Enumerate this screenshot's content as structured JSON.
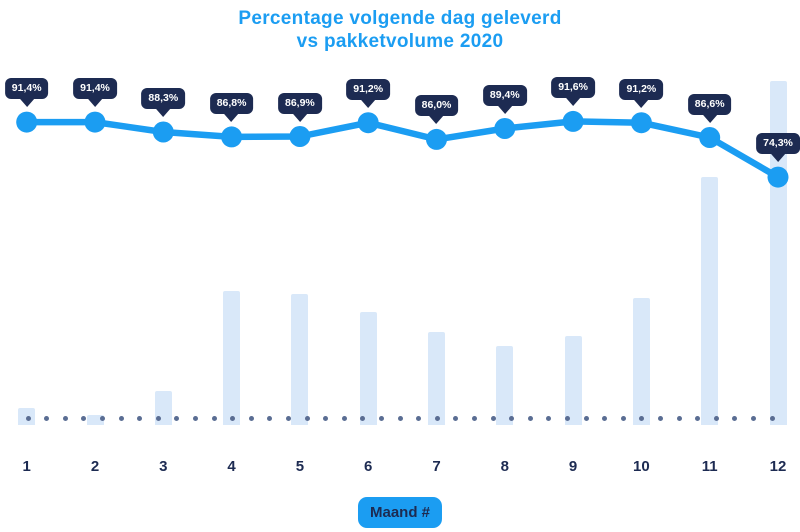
{
  "title": {
    "line1": "Percentage volgende dag geleverd",
    "line2": "vs pakketvolume 2020"
  },
  "x_axis": {
    "badge_label": "Maand #",
    "ticks": [
      "1",
      "2",
      "3",
      "4",
      "5",
      "6",
      "7",
      "8",
      "9",
      "10",
      "11",
      "12"
    ]
  },
  "chart_data": {
    "type": "combo",
    "title": "Percentage volgende dag geleverd vs pakketvolume 2020",
    "categories": [
      "1",
      "2",
      "3",
      "4",
      "5",
      "6",
      "7",
      "8",
      "9",
      "10",
      "11",
      "12"
    ],
    "xlabel": "Maand #",
    "legend": "none",
    "grid": "off",
    "baseline_style": "dotted",
    "series": [
      {
        "name": "Percentage volgende dag geleverd",
        "type": "line",
        "unit": "%",
        "values": [
          91.4,
          91.4,
          88.3,
          86.8,
          86.9,
          91.2,
          86.0,
          89.4,
          91.6,
          91.2,
          86.6,
          74.3
        ],
        "point_labels": [
          "91,4%",
          "91,4%",
          "88,3%",
          "86,8%",
          "86,9%",
          "91,2%",
          "86,0%",
          "89,4%",
          "91,6%",
          "91,2%",
          "86,6%",
          "74,3%"
        ]
      },
      {
        "name": "Pakketvolume 2020",
        "type": "bar",
        "unit": "relative volume, estimated from bar heights (max month = 100, no value axis shown)",
        "values": [
          5,
          3,
          10,
          39,
          38,
          33,
          27,
          23,
          26,
          37,
          72,
          100
        ]
      }
    ],
    "colors": {
      "line": "#1b9df2",
      "marker": "#1b9df2",
      "bar_fill": "#d9e8f9",
      "tooltip_bg": "#1d2b52",
      "tooltip_text": "#ffffff",
      "tick_text": "#1d2b52",
      "baseline_dots": "#5a6d93",
      "title_text": "#1b9df2",
      "badge_bg": "#1b9df2",
      "badge_text": "#1d2b52"
    }
  }
}
